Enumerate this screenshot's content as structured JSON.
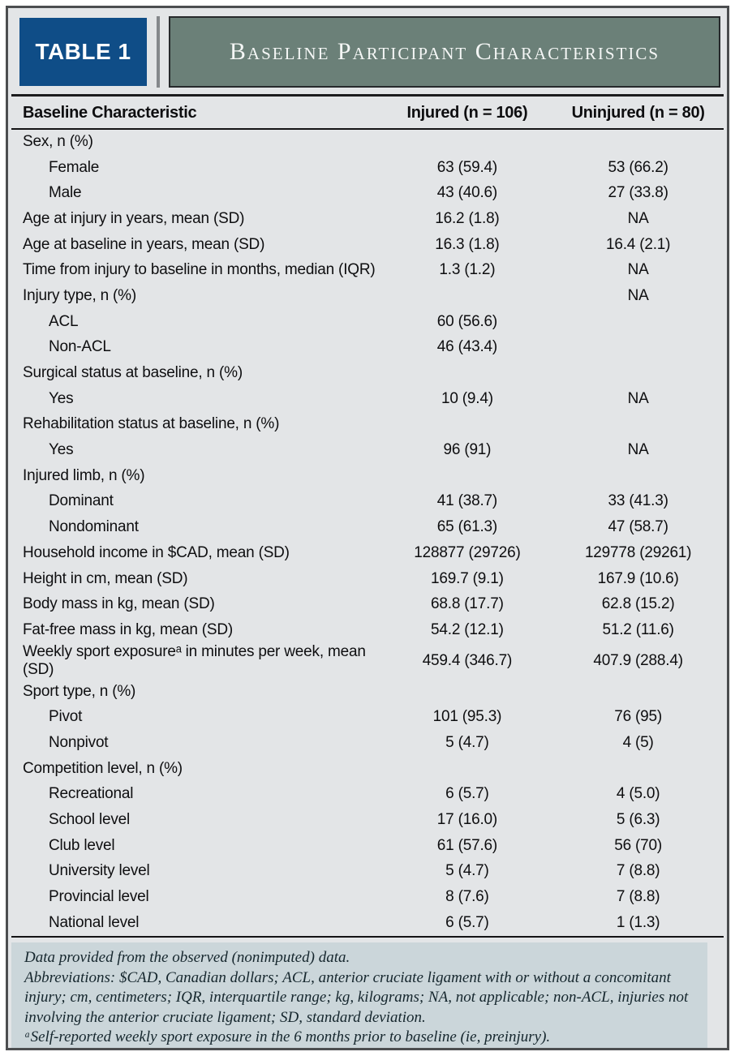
{
  "header": {
    "badge": "TABLE 1",
    "title": "Baseline Participant Characteristics"
  },
  "table": {
    "columns": [
      "Baseline Characteristic",
      "Injured (n = 106)",
      "Uninjured (n = 80)"
    ],
    "rows": [
      {
        "label": "Sex, n (%)",
        "indent": 0,
        "injured": "",
        "uninjured": ""
      },
      {
        "label": "Female",
        "indent": 1,
        "injured": "63 (59.4)",
        "uninjured": "53 (66.2)"
      },
      {
        "label": "Male",
        "indent": 1,
        "injured": "43 (40.6)",
        "uninjured": "27 (33.8)"
      },
      {
        "label": "Age at injury in years, mean (SD)",
        "indent": 0,
        "injured": "16.2 (1.8)",
        "uninjured": "NA"
      },
      {
        "label": "Age at baseline in years, mean (SD)",
        "indent": 0,
        "injured": "16.3 (1.8)",
        "uninjured": "16.4 (2.1)"
      },
      {
        "label": "Time from injury to baseline in months, median (IQR)",
        "indent": 0,
        "injured": "1.3 (1.2)",
        "uninjured": "NA"
      },
      {
        "label": "Injury type, n (%)",
        "indent": 0,
        "injured": "",
        "uninjured": "NA"
      },
      {
        "label": "ACL",
        "indent": 1,
        "injured": "60 (56.6)",
        "uninjured": ""
      },
      {
        "label": "Non-ACL",
        "indent": 1,
        "injured": "46 (43.4)",
        "uninjured": ""
      },
      {
        "label": "Surgical status at baseline, n (%)",
        "indent": 0,
        "injured": "",
        "uninjured": ""
      },
      {
        "label": "Yes",
        "indent": 1,
        "injured": "10 (9.4)",
        "uninjured": "NA"
      },
      {
        "label": "Rehabilitation status at baseline, n (%)",
        "indent": 0,
        "injured": "",
        "uninjured": ""
      },
      {
        "label": "Yes",
        "indent": 1,
        "injured": "96 (91)",
        "uninjured": "NA"
      },
      {
        "label": "Injured limb, n (%)",
        "indent": 0,
        "injured": "",
        "uninjured": ""
      },
      {
        "label": "Dominant",
        "indent": 1,
        "injured": "41 (38.7)",
        "uninjured": "33 (41.3)"
      },
      {
        "label": "Nondominant",
        "indent": 1,
        "injured": "65 (61.3)",
        "uninjured": "47 (58.7)"
      },
      {
        "label": "Household income in $CAD, mean (SD)",
        "indent": 0,
        "injured": "128877 (29726)",
        "uninjured": "129778 (29261)"
      },
      {
        "label": "Height in cm, mean (SD)",
        "indent": 0,
        "injured": "169.7 (9.1)",
        "uninjured": "167.9 (10.6)"
      },
      {
        "label": "Body mass in kg, mean (SD)",
        "indent": 0,
        "injured": "68.8 (17.7)",
        "uninjured": "62.8 (15.2)"
      },
      {
        "label": "Fat-free mass in kg, mean (SD)",
        "indent": 0,
        "injured": "54.2 (12.1)",
        "uninjured": "51.2 (11.6)"
      },
      {
        "label": "Weekly sport exposureᵃ in minutes per week, mean (SD)",
        "indent": 0,
        "injured": "459.4 (346.7)",
        "uninjured": "407.9 (288.4)"
      },
      {
        "label": "Sport type, n (%)",
        "indent": 0,
        "injured": "",
        "uninjured": ""
      },
      {
        "label": "Pivot",
        "indent": 1,
        "injured": "101 (95.3)",
        "uninjured": "76 (95)"
      },
      {
        "label": "Nonpivot",
        "indent": 1,
        "injured": "5 (4.7)",
        "uninjured": "4 (5)"
      },
      {
        "label": "Competition level, n (%)",
        "indent": 0,
        "injured": "",
        "uninjured": ""
      },
      {
        "label": "Recreational",
        "indent": 1,
        "injured": "6 (5.7)",
        "uninjured": "4 (5.0)"
      },
      {
        "label": "School level",
        "indent": 1,
        "injured": "17 (16.0)",
        "uninjured": "5 (6.3)"
      },
      {
        "label": "Club level",
        "indent": 1,
        "injured": "61 (57.6)",
        "uninjured": "56 (70)"
      },
      {
        "label": "University level",
        "indent": 1,
        "injured": "5 (4.7)",
        "uninjured": "7 (8.8)"
      },
      {
        "label": "Provincial level",
        "indent": 1,
        "injured": "8 (7.6)",
        "uninjured": "7 (8.8)"
      },
      {
        "label": "National level",
        "indent": 1,
        "injured": "6 (5.7)",
        "uninjured": "1 (1.3)"
      }
    ]
  },
  "footnotes": {
    "lines": [
      "Data provided from the observed (nonimputed) data.",
      "Abbreviations: $CAD, Canadian dollars; ACL, anterior cruciate ligament with or without a concomitant injury; cm, centimeters; IQR, interquartile range; kg, kilograms; NA, not applicable; non-ACL, injuries not involving the anterior cruciate ligament; SD, standard deviation.",
      "ᵃSelf-reported weekly sport exposure in the 6 months prior to baseline (ie, preinjury)."
    ]
  },
  "colors": {
    "badge_blue": "#0f4d87",
    "title_green": "#6b8078",
    "card_background": "#e3e5e7",
    "footnote_background": "#cbd6da",
    "outer_border": "#4c4e50",
    "rule_black": "#141416",
    "text": "#0e0e10",
    "title_text": "#f4f6f5"
  }
}
